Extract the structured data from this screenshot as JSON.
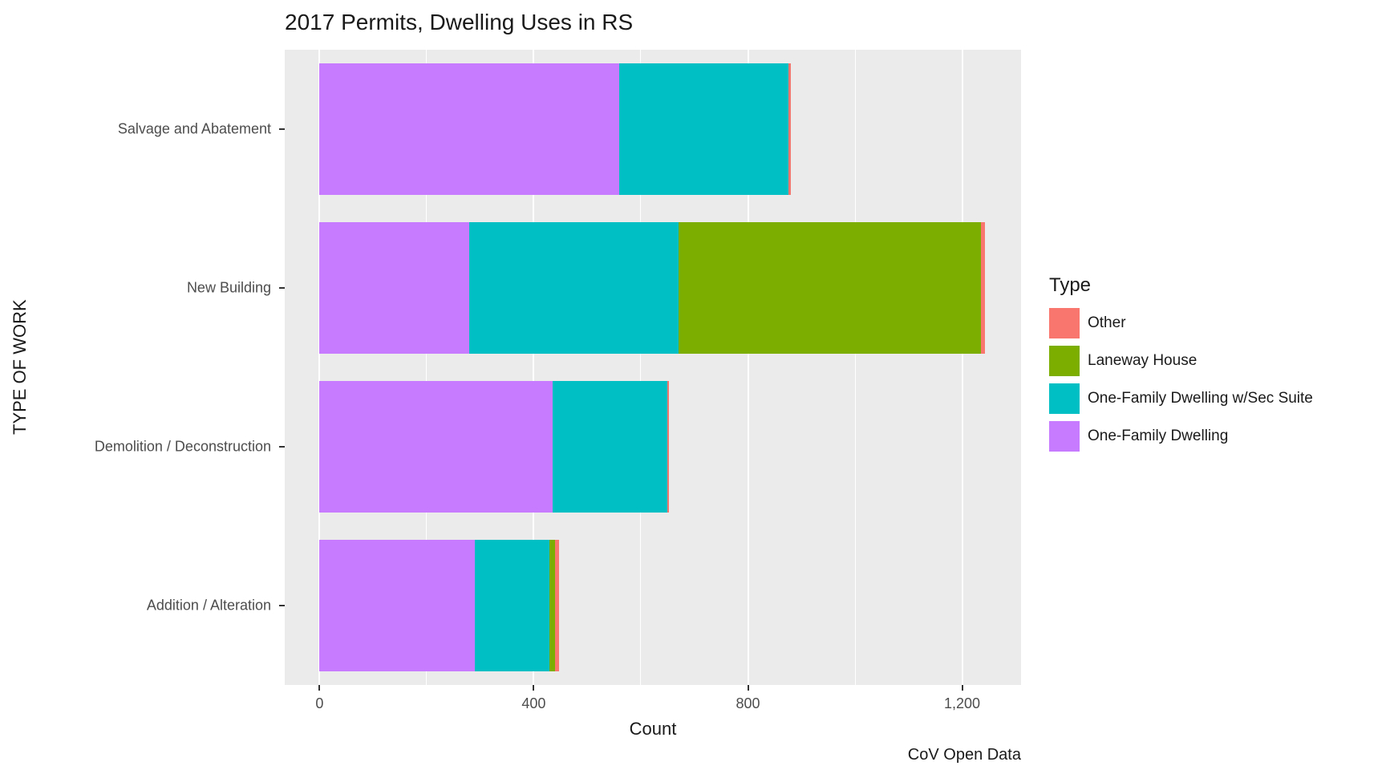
{
  "chart_data": {
    "type": "bar",
    "orientation": "horizontal",
    "stacked": true,
    "title": "2017 Permits, Dwelling Uses in RS",
    "xlabel": "Count",
    "ylabel": "TYPE OF WORK",
    "caption": "CoV Open Data",
    "categories": [
      "Salvage and Abatement",
      "New Building",
      "Demolition / Deconstruction",
      "Addition / Alteration"
    ],
    "series": [
      {
        "name": "One-Family Dwelling",
        "color": "#C77CFF",
        "values": [
          560,
          280,
          435,
          290
        ]
      },
      {
        "name": "One-Family Dwelling w/Sec Suite",
        "color": "#00BFC4",
        "values": [
          315,
          390,
          215,
          140
        ]
      },
      {
        "name": "Laneway House",
        "color": "#7CAE00",
        "values": [
          0,
          565,
          0,
          10
        ]
      },
      {
        "name": "Other",
        "color": "#F8766D",
        "values": [
          5,
          8,
          3,
          8
        ]
      }
    ],
    "totals": [
      880,
      1243,
      653,
      448
    ],
    "legend": {
      "title": "Type",
      "position": "right",
      "entries": [
        {
          "label": "Other",
          "color": "#F8766D"
        },
        {
          "label": "Laneway House",
          "color": "#7CAE00"
        },
        {
          "label": "One-Family Dwelling w/Sec Suite",
          "color": "#00BFC4"
        },
        {
          "label": "One-Family Dwelling",
          "color": "#C77CFF"
        }
      ]
    },
    "x_axis": {
      "ticks": [
        0,
        400,
        800,
        1200
      ],
      "tick_labels": [
        "0",
        "400",
        "800",
        "1,200"
      ],
      "minor_ticks": [
        200,
        600,
        1000
      ],
      "domain": [
        -65,
        1310
      ]
    },
    "style": {
      "panel_bg": "#EBEBEB",
      "grid_color": "#FFFFFF",
      "tick_color": "#333333",
      "axis_text_color": "#4d4d4d"
    }
  }
}
